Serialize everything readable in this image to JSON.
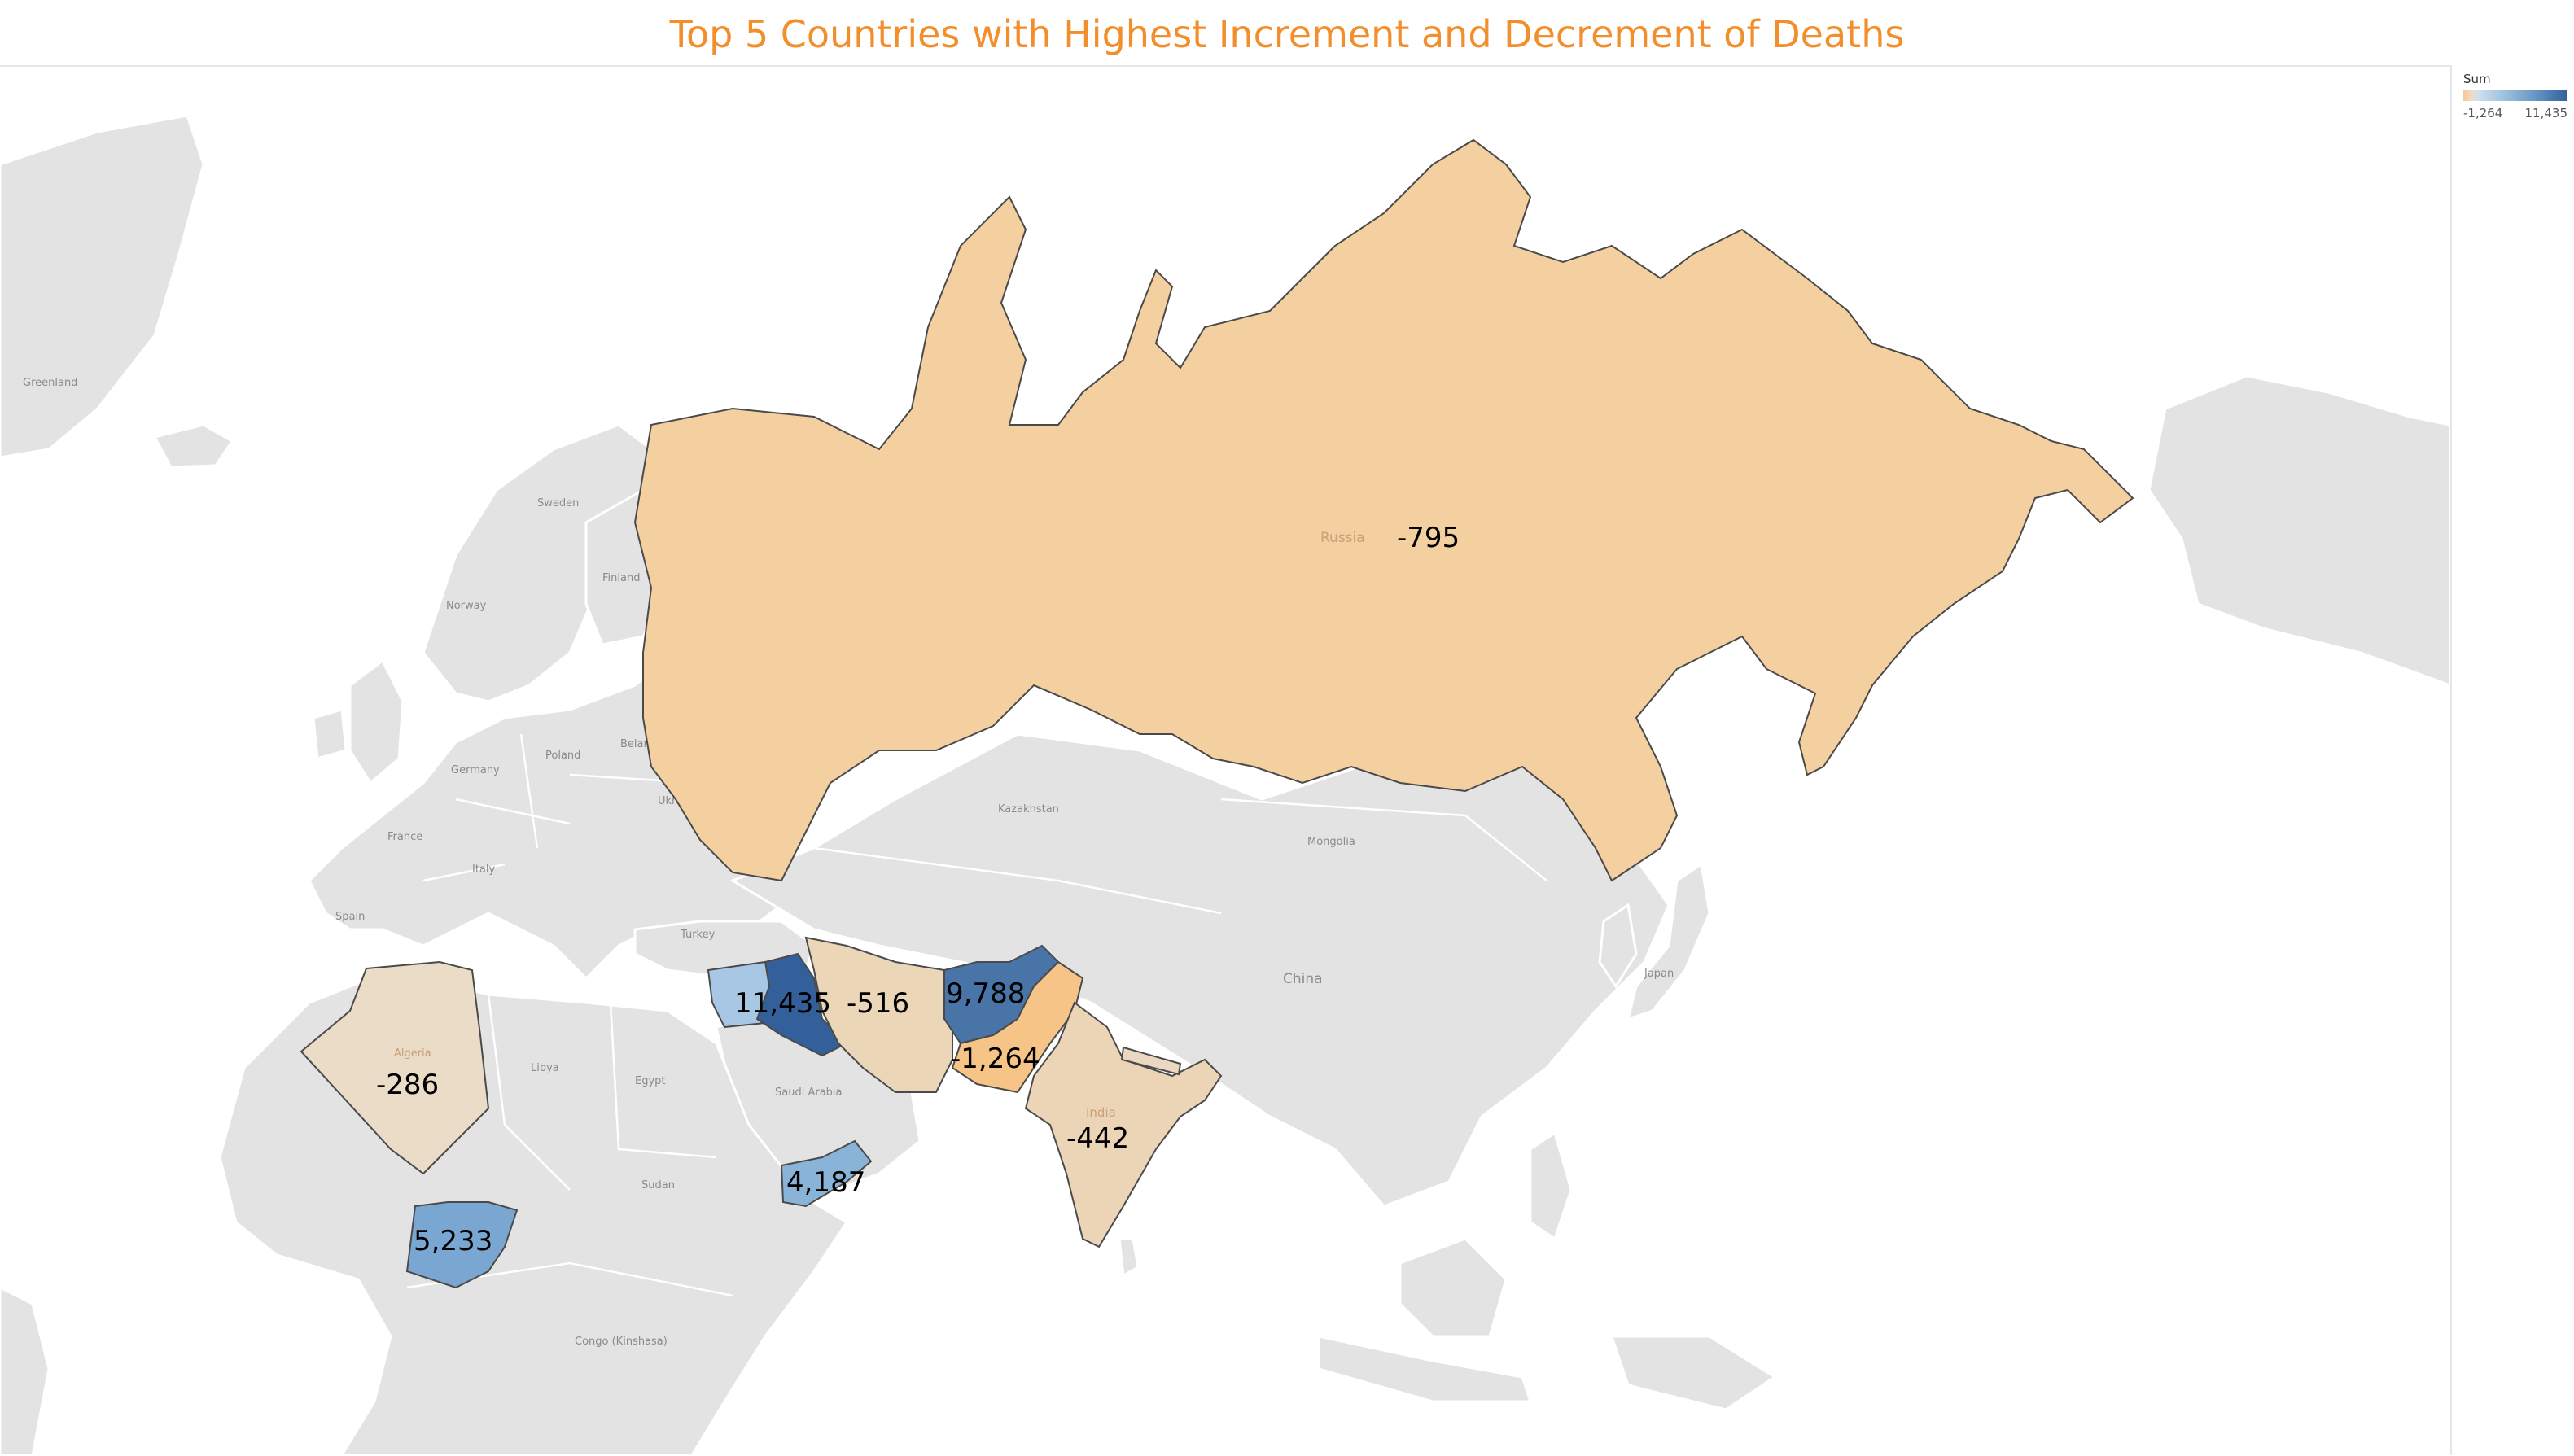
{
  "title": "Top 5 Countries with Highest Increment and Decrement of Deaths",
  "legend": {
    "title": "Sum",
    "min_label": "-1,264",
    "max_label": "11,435",
    "color_low": "#f6c89a",
    "color_high": "#33609a"
  },
  "base_map_labels": [
    "Greenland",
    "Sweden",
    "Finland",
    "Norway",
    "Belarus",
    "Poland",
    "Germany",
    "Ukraine",
    "France",
    "Italy",
    "Spain",
    "Kazakhstan",
    "Mongolia",
    "Turkey",
    "China",
    "Japan",
    "Libya",
    "Egypt",
    "Saudi Arabia",
    "Sudan",
    "Congo (Kinshasa)"
  ],
  "highlighted_country_labels": [
    "Russia",
    "Algeria",
    "India"
  ],
  "regions": [
    {
      "country": "Russia",
      "value": -795,
      "label": "-795",
      "color": "#f4cf9f"
    },
    {
      "country": "Algeria",
      "value": -286,
      "label": "-286",
      "color": "#ebdcc8"
    },
    {
      "country": "Iraq",
      "value": 11435,
      "label": "11,435",
      "color": "#33609a"
    },
    {
      "country": "Iran",
      "value": -516,
      "label": "-516",
      "color": "#ecd6b8"
    },
    {
      "country": "Afghanistan",
      "value": 9788,
      "label": "9,788",
      "color": "#4874a8"
    },
    {
      "country": "Pakistan",
      "value": -1264,
      "label": "-1,264",
      "color": "#f7c488"
    },
    {
      "country": "India",
      "value": -442,
      "label": "-442",
      "color": "#ecd4b6"
    },
    {
      "country": "Yemen",
      "value": 4187,
      "label": "4,187",
      "color": "#8ab3d8"
    },
    {
      "country": "Nigeria",
      "value": 5233,
      "label": "5,233",
      "color": "#7aa7d2"
    }
  ],
  "secondary_regions": [
    {
      "country": "Syria",
      "color": "#a7c7e4"
    },
    {
      "country": "Nepal",
      "color": "#ead8c2"
    }
  ]
}
